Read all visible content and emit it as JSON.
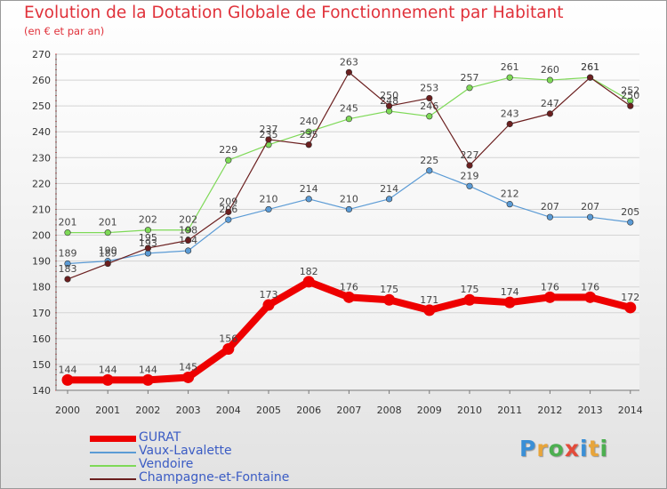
{
  "title": "Evolution de la Dotation Globale de Fonctionnement par Habitant",
  "subtitle": "(en € et par an)",
  "logo": {
    "text": "Proxiti",
    "colors": [
      "#3a8fd6",
      "#e8a53a",
      "#4caf50",
      "#e34b3a",
      "#3a8fd6",
      "#e8a53a",
      "#4caf50"
    ]
  },
  "chart_data": {
    "type": "line",
    "title": "Evolution de la Dotation Globale de Fonctionnement par Habitant",
    "subtitle": "(en € et par an)",
    "xlabel": "",
    "ylabel": "",
    "ylim": [
      140,
      270
    ],
    "yticks": [
      140,
      150,
      160,
      170,
      180,
      190,
      200,
      210,
      220,
      230,
      240,
      250,
      260,
      270
    ],
    "grid": true,
    "categories": [
      "2000",
      "2001",
      "2002",
      "2003",
      "2004",
      "2005",
      "2006",
      "2007",
      "2008",
      "2009",
      "2010",
      "2011",
      "2012",
      "2013",
      "2014"
    ],
    "series": [
      {
        "name": "GURAT",
        "color": "#ee0000",
        "values": [
          144,
          144,
          144,
          145,
          156,
          173,
          182,
          176,
          175,
          171,
          175,
          174,
          176,
          176,
          172
        ]
      },
      {
        "name": "Vaux-Lavalette",
        "color": "#5b9bd5",
        "values": [
          189,
          190,
          193,
          194,
          206,
          210,
          214,
          210,
          214,
          225,
          219,
          212,
          207,
          207,
          205
        ]
      },
      {
        "name": "Vendoire",
        "color": "#7ed957",
        "values": [
          201,
          201,
          202,
          202,
          229,
          235,
          240,
          245,
          248,
          246,
          257,
          261,
          260,
          261,
          252
        ]
      },
      {
        "name": "Champagne-et-Fontaine",
        "color": "#6b1f1f",
        "values": [
          183,
          189,
          195,
          198,
          209,
          237,
          235,
          263,
          250,
          253,
          227,
          243,
          247,
          261,
          250
        ]
      }
    ],
    "legend_position": "bottom-left"
  }
}
